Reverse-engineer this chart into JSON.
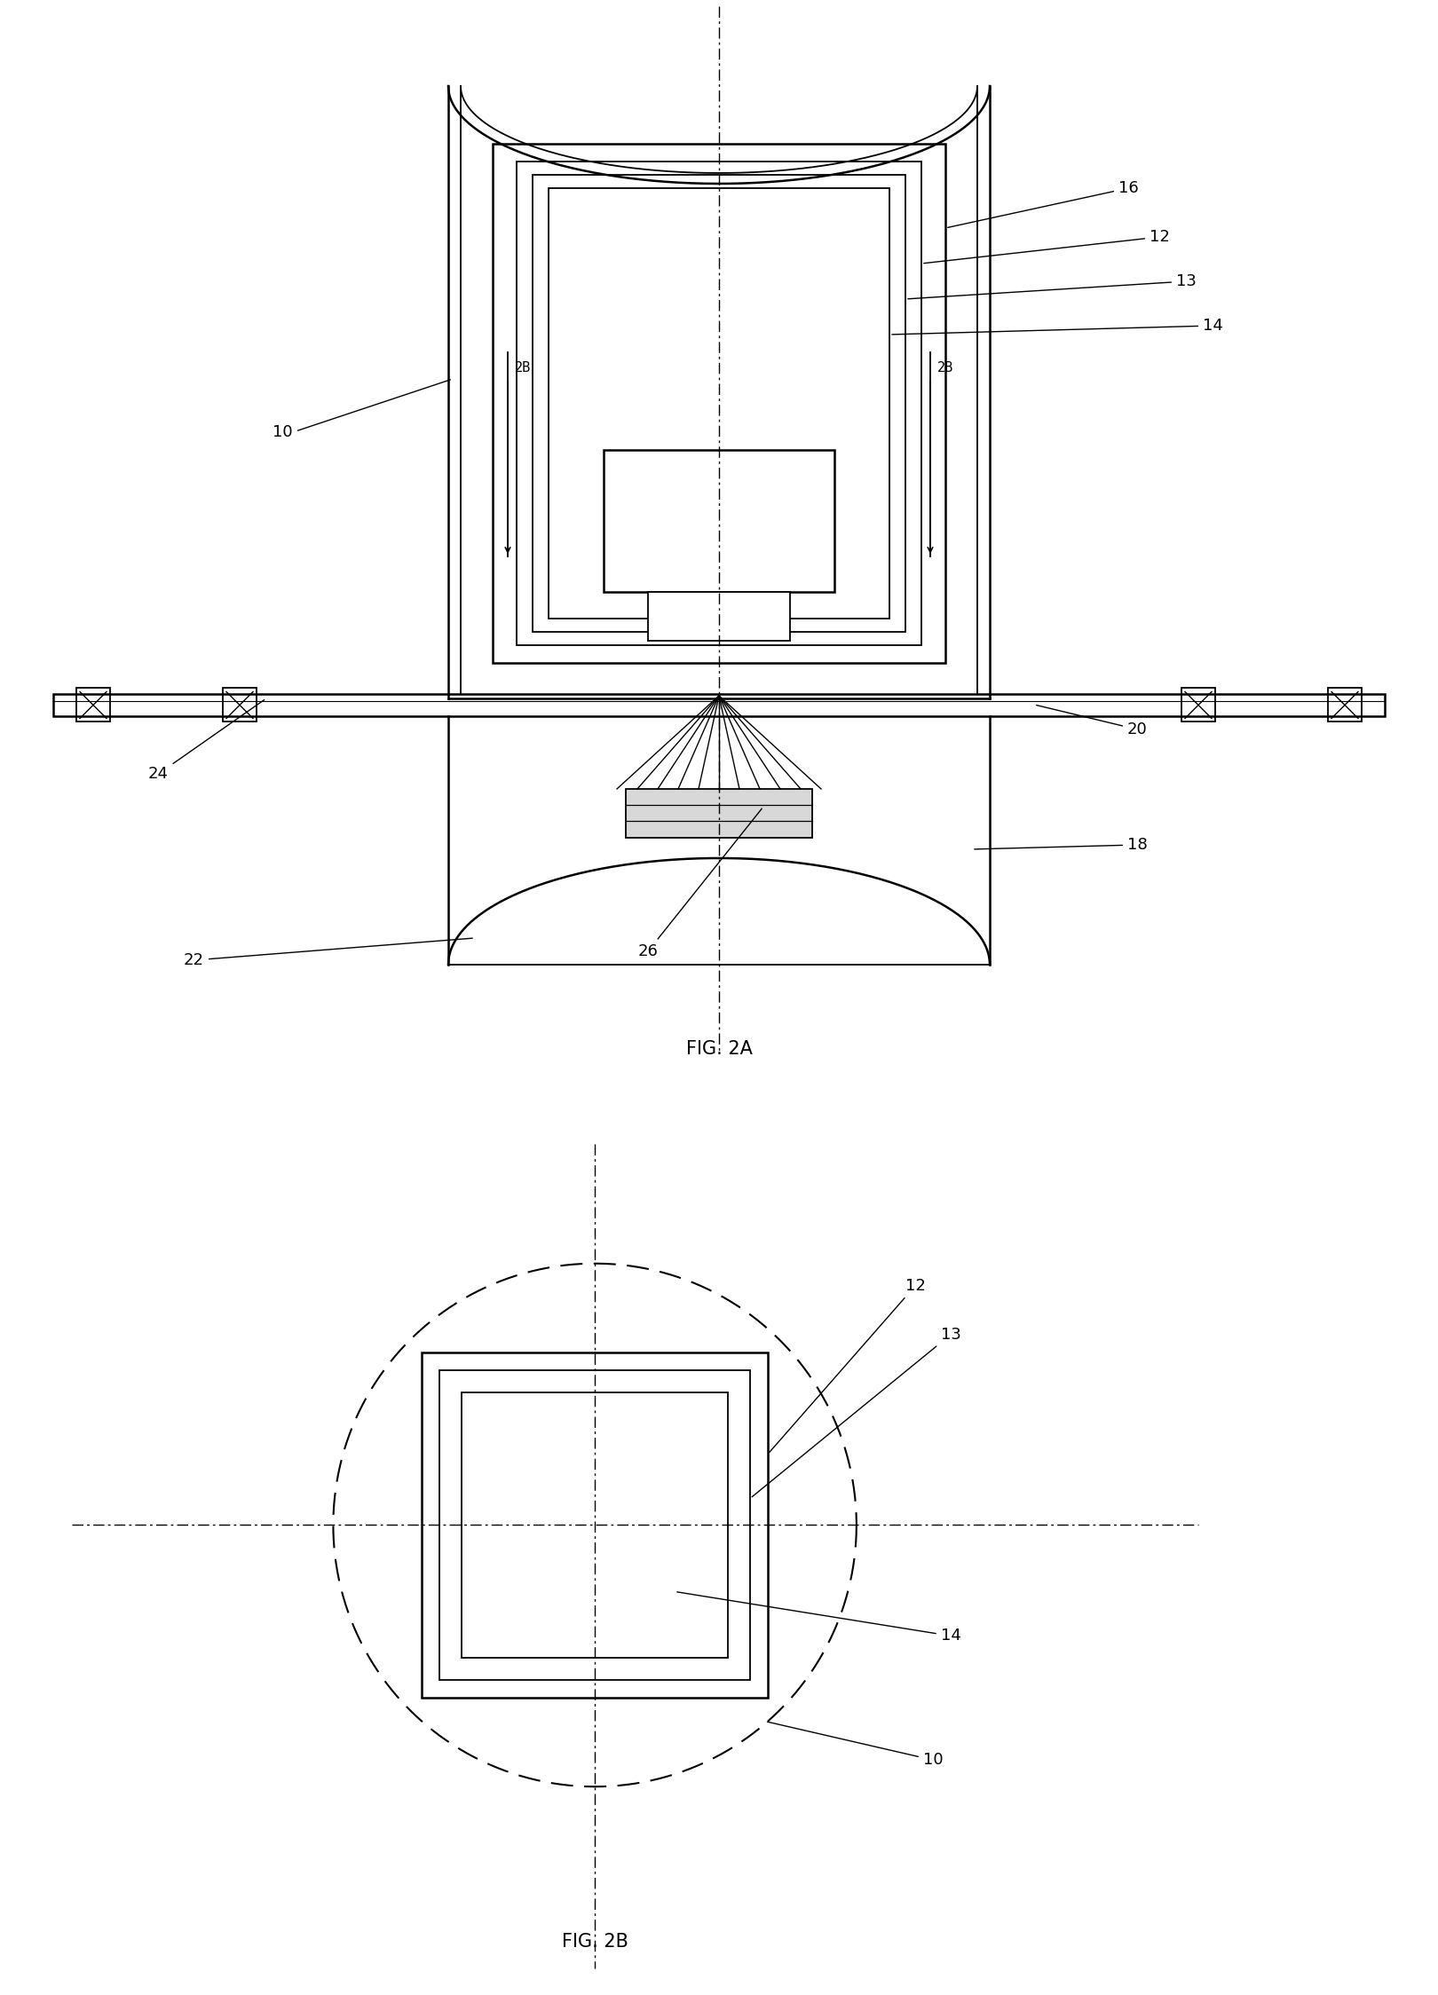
{
  "fig_width": 16.2,
  "fig_height": 22.48,
  "bg_color": "#ffffff",
  "line_color": "#000000",
  "fig2a_label": "FIG. 2A",
  "fig2b_label": "FIG. 2B"
}
